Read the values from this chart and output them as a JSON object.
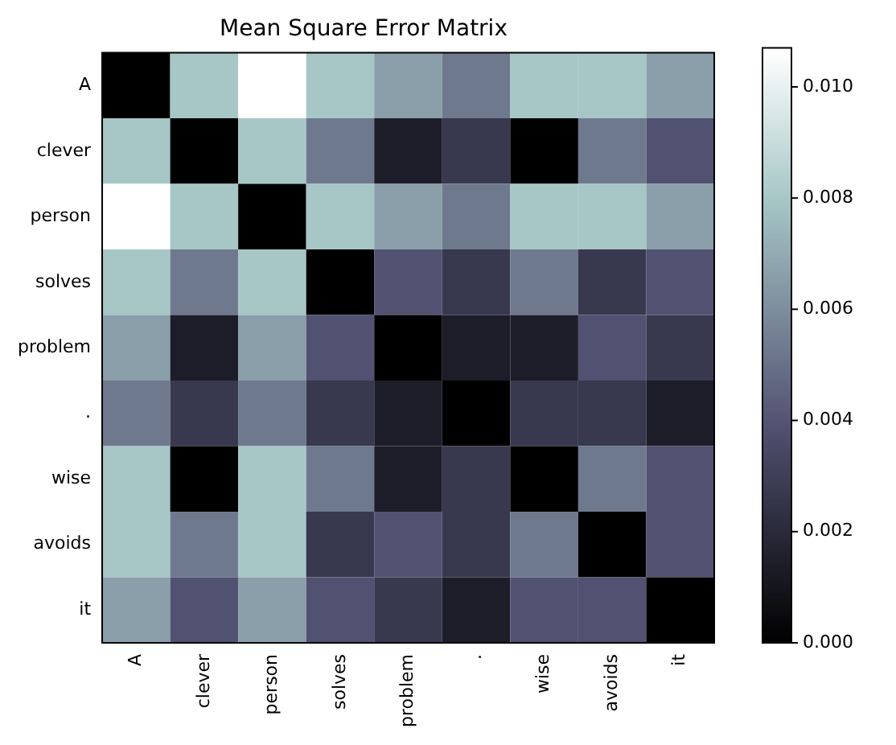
{
  "chart_data": {
    "type": "heatmap",
    "title": "Mean Square Error Matrix",
    "categories": [
      "A",
      "clever",
      "person",
      "solves",
      "problem",
      ".",
      "wise",
      "avoids",
      "it"
    ],
    "y_categories": [
      "A",
      "clever",
      "person",
      "solves",
      "problem",
      ".",
      "wise",
      "avoids",
      "it"
    ],
    "cells": [
      [
        0,
        0.008,
        0.0107,
        0.008,
        0.0066,
        0.0053,
        0.008,
        0.008,
        0.0066
      ],
      [
        0.008,
        0,
        0.008,
        0.0053,
        0.0014,
        0.0027,
        0,
        0.0053,
        0.0039
      ],
      [
        0.0107,
        0.008,
        0,
        0.008,
        0.0066,
        0.0053,
        0.008,
        0.008,
        0.0066
      ],
      [
        0.008,
        0.0053,
        0.008,
        0,
        0.0039,
        0.0027,
        0.0053,
        0.0027,
        0.0039
      ],
      [
        0.0066,
        0.0014,
        0.0066,
        0.0039,
        0,
        0.0014,
        0.0014,
        0.0039,
        0.0027
      ],
      [
        0.0053,
        0.0027,
        0.0053,
        0.0027,
        0.0014,
        0,
        0.0027,
        0.0027,
        0.0014
      ],
      [
        0.008,
        0,
        0.008,
        0.0053,
        0.0014,
        0.0027,
        0,
        0.0053,
        0.0039
      ],
      [
        0.008,
        0.0053,
        0.008,
        0.0027,
        0.0039,
        0.0027,
        0.0053,
        0,
        0.0039
      ],
      [
        0.0066,
        0.0039,
        0.0066,
        0.0039,
        0.0027,
        0.0014,
        0.0039,
        0.0039,
        0
      ]
    ],
    "clim": [
      0,
      0.0107
    ],
    "cticks": [
      {
        "value": 0,
        "label": "0.000"
      },
      {
        "value": 0.002,
        "label": "0.002"
      },
      {
        "value": 0.004,
        "label": "0.004"
      },
      {
        "value": 0.006,
        "label": "0.006"
      },
      {
        "value": 0.008,
        "label": "0.008"
      },
      {
        "value": 0.01,
        "label": "0.010"
      }
    ]
  }
}
